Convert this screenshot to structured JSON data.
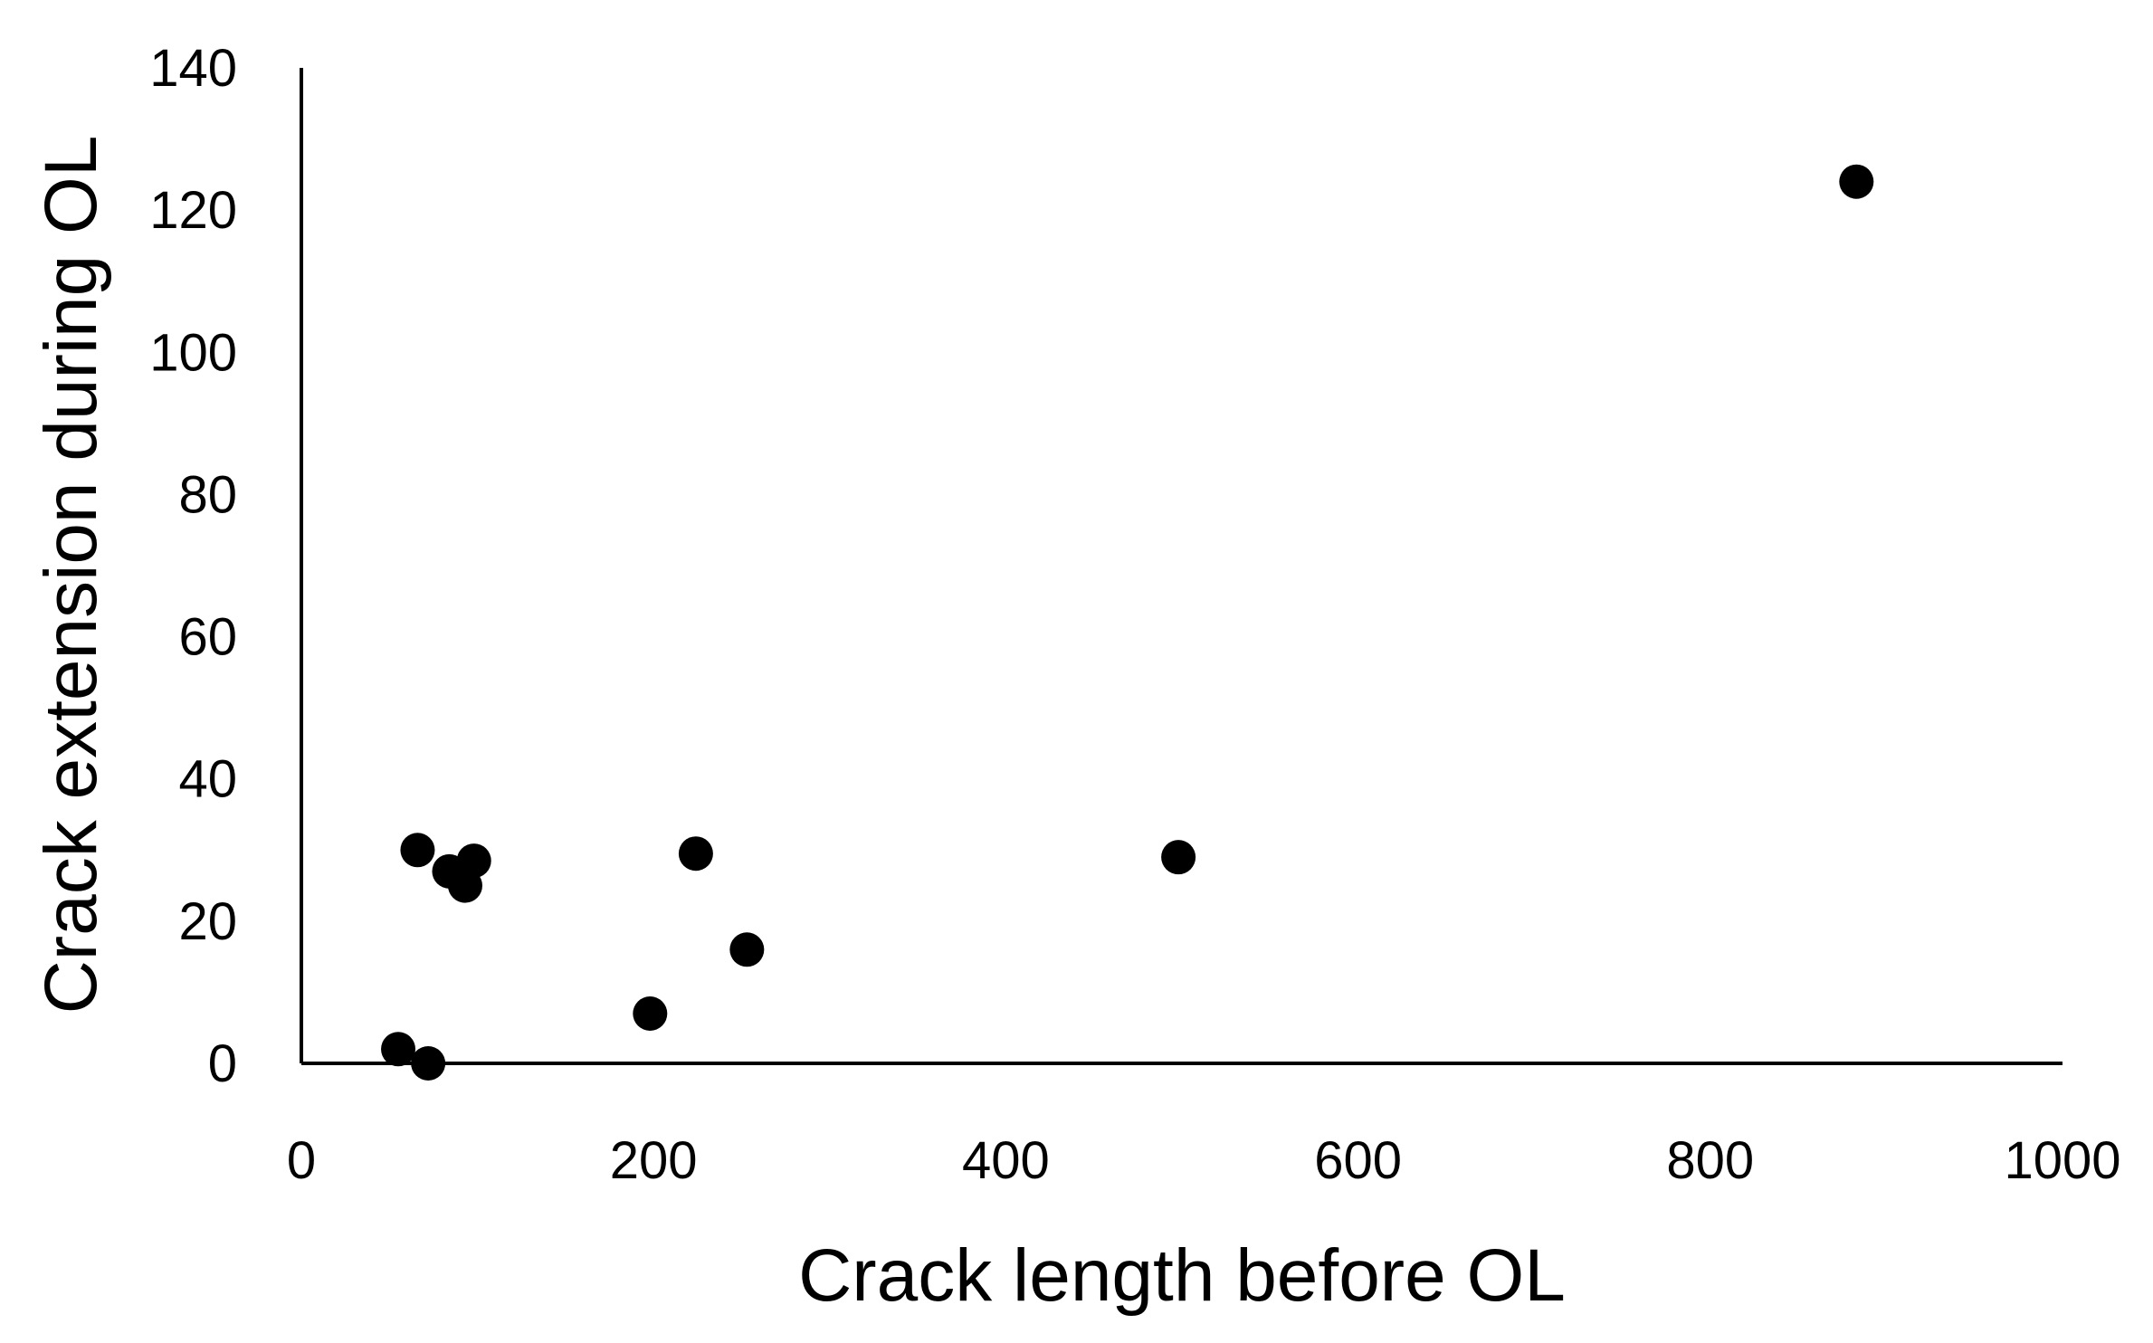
{
  "chart_data": {
    "type": "scatter",
    "title": "",
    "xlabel": "Crack length before OL",
    "ylabel": "Crack extension during OL",
    "xlim": [
      0,
      1000
    ],
    "ylim": [
      0,
      140
    ],
    "x_ticks": [
      "0",
      "200",
      "400",
      "600",
      "800",
      "1000"
    ],
    "y_ticks": [
      "0",
      "20",
      "40",
      "60",
      "80",
      "100",
      "120",
      "140"
    ],
    "grid": false,
    "legend": "none",
    "marker_color": "#000000",
    "series": [
      {
        "points": [
          {
            "x": 55,
            "y": 2
          },
          {
            "x": 72,
            "y": 0
          },
          {
            "x": 66,
            "y": 30
          },
          {
            "x": 84,
            "y": 27
          },
          {
            "x": 93,
            "y": 25
          },
          {
            "x": 98,
            "y": 28.5
          },
          {
            "x": 198,
            "y": 7
          },
          {
            "x": 224,
            "y": 29.5
          },
          {
            "x": 253,
            "y": 16
          },
          {
            "x": 498,
            "y": 29
          },
          {
            "x": 883,
            "y": 124
          }
        ]
      }
    ]
  }
}
